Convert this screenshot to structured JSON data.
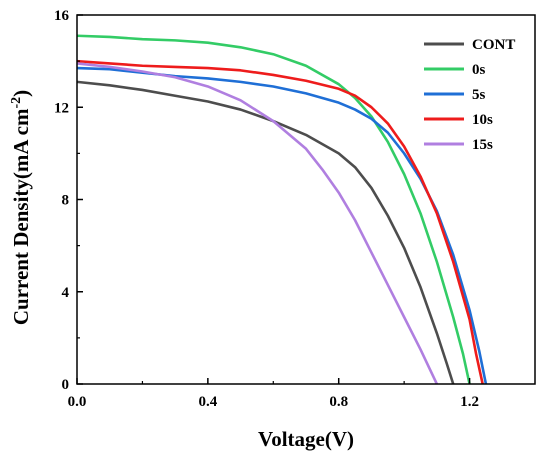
{
  "chart_data": {
    "type": "line",
    "xlabel": "Voltage(V)",
    "ylabel_main": "Current Density(mA cm",
    "ylabel_sup": "-2",
    "ylabel_close": ")",
    "xlim": [
      0.0,
      1.4
    ],
    "ylim": [
      0,
      16
    ],
    "xticks": [
      0.0,
      0.4,
      0.8,
      1.2
    ],
    "xtick_labels": [
      "0.0",
      "0.4",
      "0.8",
      "1.2"
    ],
    "yticks": [
      0,
      4,
      8,
      12,
      16
    ],
    "ytick_labels": [
      "0",
      "4",
      "8",
      "12",
      "16"
    ],
    "grid": false,
    "legend_position": "top-right",
    "series": [
      {
        "name": "CONT",
        "color": "#4d4d4d",
        "points": [
          [
            0.0,
            13.1
          ],
          [
            0.1,
            12.95
          ],
          [
            0.2,
            12.75
          ],
          [
            0.3,
            12.5
          ],
          [
            0.4,
            12.25
          ],
          [
            0.5,
            11.9
          ],
          [
            0.6,
            11.4
          ],
          [
            0.7,
            10.8
          ],
          [
            0.8,
            10.0
          ],
          [
            0.85,
            9.4
          ],
          [
            0.9,
            8.5
          ],
          [
            0.95,
            7.3
          ],
          [
            1.0,
            5.9
          ],
          [
            1.05,
            4.2
          ],
          [
            1.1,
            2.2
          ],
          [
            1.13,
            0.9
          ],
          [
            1.15,
            0.0
          ]
        ]
      },
      {
        "name": "0s",
        "color": "#33cc66",
        "points": [
          [
            0.0,
            15.1
          ],
          [
            0.1,
            15.05
          ],
          [
            0.2,
            14.95
          ],
          [
            0.3,
            14.9
          ],
          [
            0.4,
            14.8
          ],
          [
            0.5,
            14.6
          ],
          [
            0.6,
            14.3
          ],
          [
            0.7,
            13.8
          ],
          [
            0.8,
            13.0
          ],
          [
            0.85,
            12.4
          ],
          [
            0.9,
            11.6
          ],
          [
            0.95,
            10.5
          ],
          [
            1.0,
            9.1
          ],
          [
            1.05,
            7.4
          ],
          [
            1.1,
            5.3
          ],
          [
            1.15,
            2.9
          ],
          [
            1.18,
            1.3
          ],
          [
            1.2,
            0.0
          ]
        ]
      },
      {
        "name": "5s",
        "color": "#1f6fd6",
        "points": [
          [
            0.0,
            13.7
          ],
          [
            0.1,
            13.65
          ],
          [
            0.2,
            13.5
          ],
          [
            0.3,
            13.35
          ],
          [
            0.4,
            13.25
          ],
          [
            0.5,
            13.1
          ],
          [
            0.6,
            12.9
          ],
          [
            0.7,
            12.6
          ],
          [
            0.8,
            12.2
          ],
          [
            0.85,
            11.9
          ],
          [
            0.9,
            11.5
          ],
          [
            0.95,
            10.9
          ],
          [
            1.0,
            10.0
          ],
          [
            1.05,
            8.9
          ],
          [
            1.1,
            7.5
          ],
          [
            1.15,
            5.6
          ],
          [
            1.2,
            3.2
          ],
          [
            1.23,
            1.4
          ],
          [
            1.25,
            0.0
          ]
        ]
      },
      {
        "name": "10s",
        "color": "#ee1c1c",
        "points": [
          [
            0.0,
            14.0
          ],
          [
            0.05,
            13.95
          ],
          [
            0.1,
            13.9
          ],
          [
            0.2,
            13.8
          ],
          [
            0.3,
            13.75
          ],
          [
            0.4,
            13.7
          ],
          [
            0.5,
            13.6
          ],
          [
            0.6,
            13.4
          ],
          [
            0.7,
            13.15
          ],
          [
            0.8,
            12.8
          ],
          [
            0.85,
            12.5
          ],
          [
            0.9,
            12.0
          ],
          [
            0.95,
            11.3
          ],
          [
            1.0,
            10.3
          ],
          [
            1.05,
            9.0
          ],
          [
            1.1,
            7.4
          ],
          [
            1.15,
            5.3
          ],
          [
            1.2,
            2.8
          ],
          [
            1.22,
            1.3
          ],
          [
            1.24,
            0.0
          ]
        ]
      },
      {
        "name": "15s",
        "color": "#b07fe0",
        "points": [
          [
            0.0,
            13.9
          ],
          [
            0.1,
            13.75
          ],
          [
            0.2,
            13.55
          ],
          [
            0.3,
            13.3
          ],
          [
            0.4,
            12.9
          ],
          [
            0.5,
            12.3
          ],
          [
            0.6,
            11.4
          ],
          [
            0.7,
            10.2
          ],
          [
            0.75,
            9.3
          ],
          [
            0.8,
            8.3
          ],
          [
            0.85,
            7.1
          ],
          [
            0.9,
            5.7
          ],
          [
            0.95,
            4.3
          ],
          [
            1.0,
            2.9
          ],
          [
            1.05,
            1.5
          ],
          [
            1.08,
            0.6
          ],
          [
            1.1,
            0.0
          ]
        ]
      }
    ]
  }
}
